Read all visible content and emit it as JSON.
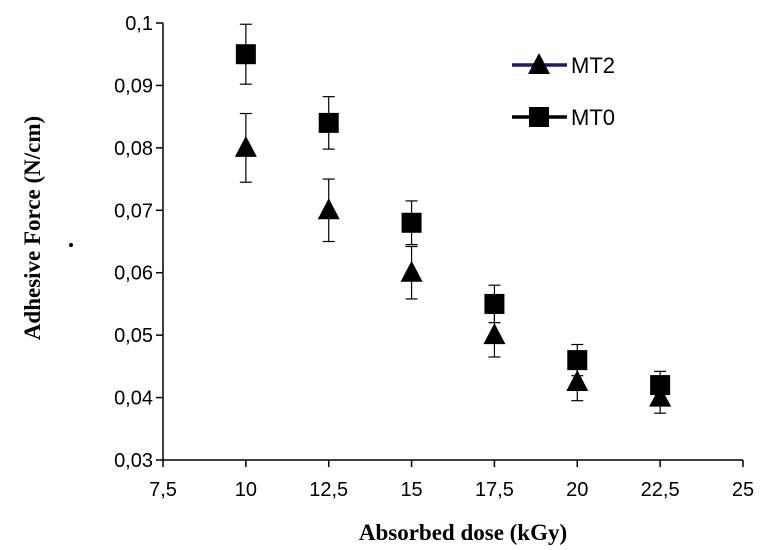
{
  "chart_data": {
    "type": "scatter",
    "xlabel": "Absorbed dose (kGy)",
    "ylabel": "Adhesive Force (N/cm)",
    "xlim": [
      7.5,
      25
    ],
    "ylim": [
      0.03,
      0.1
    ],
    "x_ticks": [
      "7,5",
      "10",
      "12,5",
      "15",
      "17,5",
      "20",
      "22,5",
      "25"
    ],
    "y_ticks": [
      "0,03",
      "0,04",
      "0,05",
      "0,06",
      "0,07",
      "0,08",
      "0,09",
      "0,1"
    ],
    "x_tick_values": [
      7.5,
      10,
      12.5,
      15,
      17.5,
      20,
      22.5,
      25
    ],
    "y_tick_values": [
      0.03,
      0.04,
      0.05,
      0.06,
      0.07,
      0.08,
      0.09,
      0.1
    ],
    "grid": false,
    "legend_position": "top-right",
    "series": [
      {
        "name": "MT2",
        "marker": "triangle",
        "line_color": "#1a1a7a",
        "marker_color": "#000000",
        "x": [
          10,
          12.5,
          15,
          17.5,
          20,
          22.5
        ],
        "y": [
          0.08,
          0.07,
          0.06,
          0.05,
          0.0425,
          0.04
        ],
        "err": [
          0.0055,
          0.005,
          0.0042,
          0.0035,
          0.003,
          0.0025
        ]
      },
      {
        "name": "MT0",
        "marker": "square",
        "line_color": "#000000",
        "marker_color": "#000000",
        "x": [
          10,
          12.5,
          15,
          17.5,
          20,
          22.5
        ],
        "y": [
          0.095,
          0.084,
          0.068,
          0.055,
          0.046,
          0.042
        ],
        "err": [
          0.0048,
          0.0042,
          0.0035,
          0.003,
          0.0025,
          0.0022
        ]
      }
    ]
  }
}
